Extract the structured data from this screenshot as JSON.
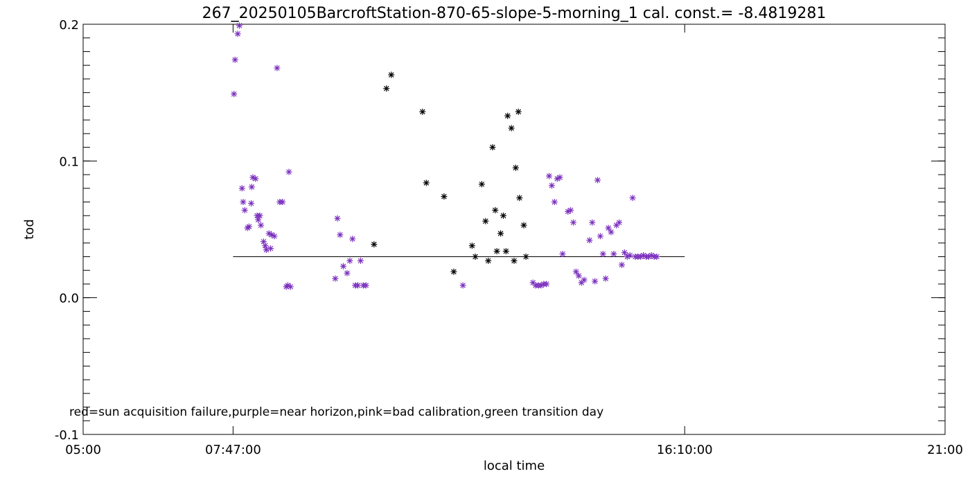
{
  "colors": {
    "background": "#ffffff",
    "axis": "#000000",
    "marker": "#000000",
    "near_horizon": "#7b2fbe"
  },
  "chart_data": {
    "type": "scatter",
    "title": "267_20250105BarcroftStation-870-65-slope-5-morning_1 cal. const.= -8.4819281",
    "xlabel": "local time",
    "ylabel": "tod",
    "note": "red=sun acquisition failure,purple=near horizon,pink=bad calibration,green transition day",
    "x_unit": "hours",
    "xlim": [
      5.0,
      21.0
    ],
    "ylim": [
      -0.1,
      0.2
    ],
    "x_ticks": [
      5.0,
      7.7833,
      16.1667,
      21.0
    ],
    "x_tick_labels": [
      "05:00",
      "07:47:00",
      "16:10:00",
      "21:00"
    ],
    "y_ticks": [
      -0.1,
      0.0,
      0.1,
      0.2
    ],
    "y_tick_labels": [
      "-0.1",
      "0.0",
      "0.1",
      "0.2"
    ],
    "reference_line": {
      "y": 0.03,
      "x_start": 7.7833,
      "x_end": 16.1667
    },
    "series": [
      {
        "marker": "asterisk",
        "color": "#000000",
        "x": [
          10.4,
          10.63,
          10.72,
          11.3,
          11.37,
          11.7,
          11.88,
          12.22,
          12.28,
          12.4,
          12.47,
          12.52,
          12.6,
          12.65,
          12.68,
          12.75,
          12.8,
          12.85,
          12.88,
          12.95,
          13.0,
          13.03,
          13.08
        ],
        "y": [
          0.039,
          0.153,
          0.163,
          0.136,
          0.084,
          0.074,
          0.019,
          0.038,
          0.03,
          0.083,
          0.056,
          0.027,
          0.11,
          0.064,
          0.034,
          0.047,
          0.06,
          0.034,
          0.133,
          0.124,
          0.027,
          0.095,
          0.136
        ]
      },
      {
        "marker": "asterisk",
        "color": "#000000",
        "x": [
          13.1,
          13.18,
          13.22
        ],
        "y": [
          0.073,
          0.053,
          0.03
        ]
      },
      {
        "name": "near horizon",
        "marker": "asterisk",
        "color": "#7b2fbe",
        "x": [
          7.8,
          7.82,
          7.87,
          7.9,
          7.95,
          7.97,
          8.0,
          8.05,
          8.08,
          8.12,
          8.13,
          8.15,
          8.2,
          8.23,
          8.25,
          8.28,
          8.3,
          8.35,
          8.38,
          8.4,
          8.45,
          8.48,
          8.5,
          8.55,
          8.6,
          8.65,
          8.7,
          8.77,
          8.8,
          8.82,
          8.85,
          9.68,
          9.72,
          9.77,
          9.83,
          9.9,
          9.95,
          10.0,
          10.05,
          10.1,
          10.15,
          10.2,
          10.25,
          12.05,
          13.35,
          13.4,
          13.45,
          13.5,
          13.55,
          13.6,
          13.65,
          13.7,
          13.75,
          13.8,
          13.85,
          13.9,
          14.0,
          14.05,
          14.1,
          14.15,
          14.2,
          14.25,
          14.3,
          14.4,
          14.45,
          14.5,
          14.55,
          14.6,
          14.65,
          14.7,
          14.75,
          14.8,
          14.85,
          14.9,
          14.95,
          15.0,
          15.05,
          15.1,
          15.15,
          15.2,
          15.25,
          15.3,
          15.35,
          15.4,
          15.45,
          15.5,
          15.55,
          15.6,
          15.65
        ],
        "y": [
          0.149,
          0.174,
          0.193,
          0.199,
          0.08,
          0.07,
          0.064,
          0.051,
          0.052,
          0.069,
          0.081,
          0.088,
          0.087,
          0.06,
          0.057,
          0.06,
          0.053,
          0.041,
          0.038,
          0.035,
          0.047,
          0.036,
          0.046,
          0.045,
          0.168,
          0.07,
          0.07,
          0.008,
          0.009,
          0.092,
          0.008,
          0.014,
          0.058,
          0.046,
          0.023,
          0.018,
          0.027,
          0.043,
          0.009,
          0.009,
          0.027,
          0.009,
          0.009,
          0.009,
          0.011,
          0.009,
          0.009,
          0.009,
          0.01,
          0.01,
          0.089,
          0.082,
          0.07,
          0.087,
          0.088,
          0.032,
          0.063,
          0.064,
          0.055,
          0.019,
          0.016,
          0.011,
          0.013,
          0.042,
          0.055,
          0.012,
          0.086,
          0.045,
          0.032,
          0.014,
          0.051,
          0.048,
          0.032,
          0.053,
          0.055,
          0.024,
          0.033,
          0.03,
          0.031,
          0.073,
          0.03,
          0.03,
          0.03,
          0.031,
          0.03,
          0.03,
          0.031,
          0.03,
          0.03
        ]
      }
    ]
  }
}
